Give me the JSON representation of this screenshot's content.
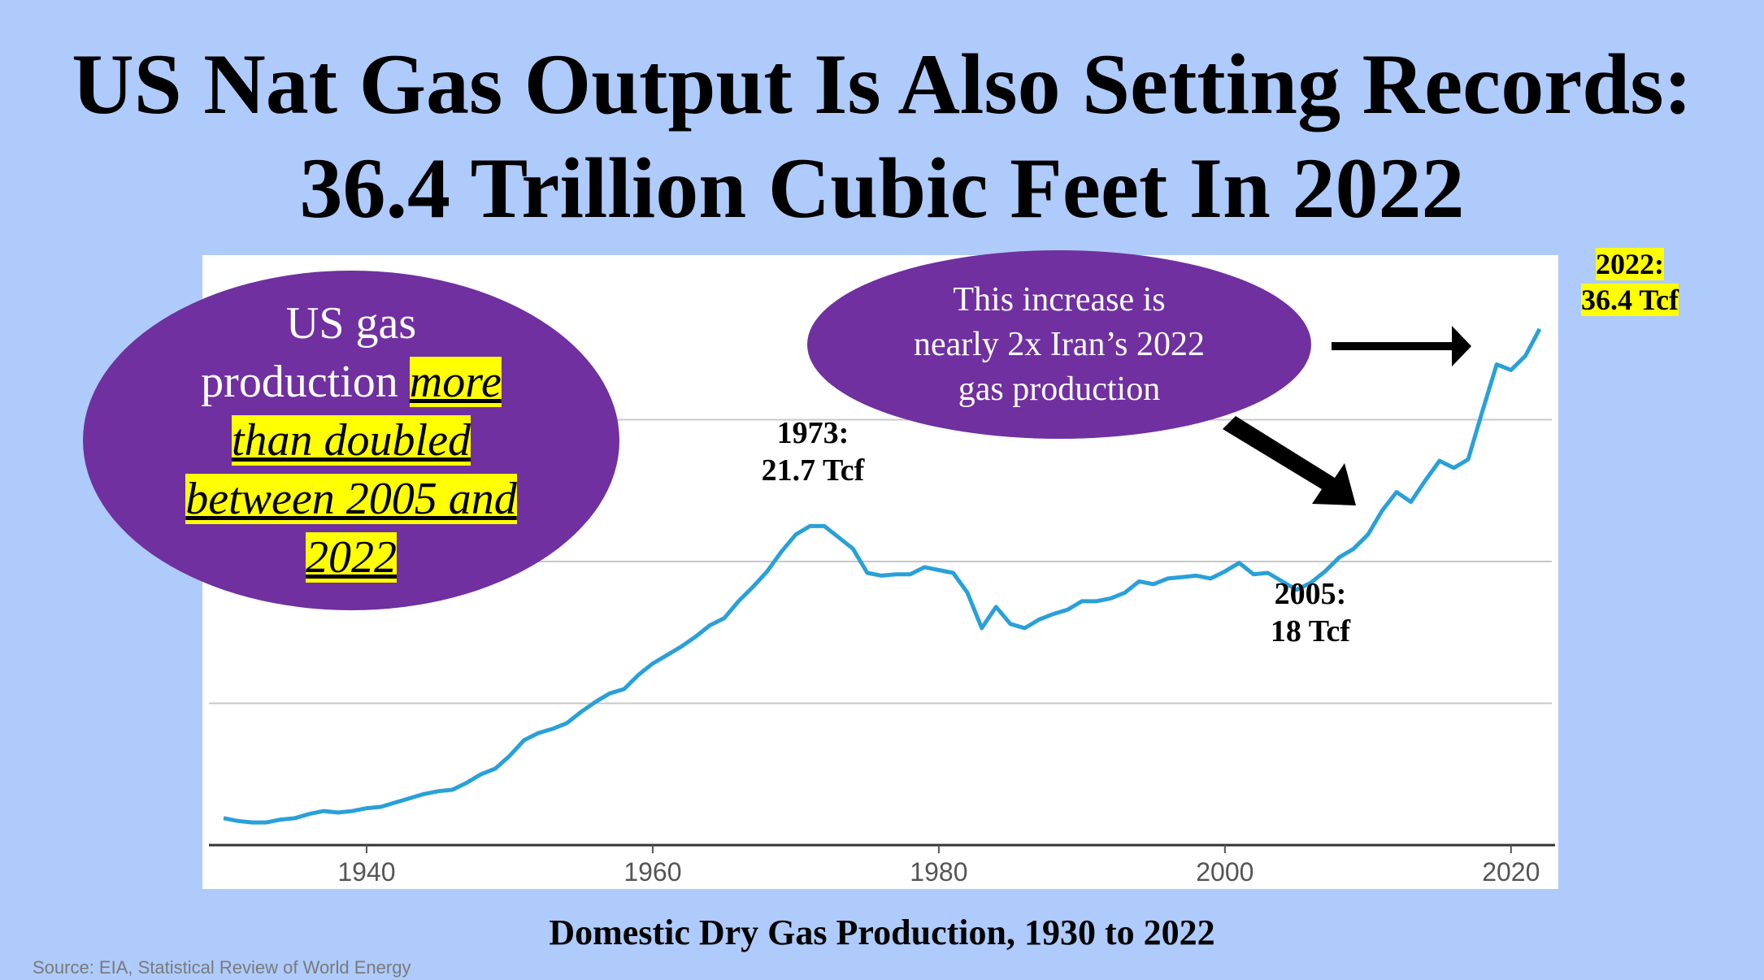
{
  "title": {
    "line1": "US Nat Gas Output Is Also Setting Records:",
    "line2": "36.4 Trillion Cubic Feet In 2022"
  },
  "bubble_left": {
    "text_plain_1": "US gas",
    "text_plain_2": "production ",
    "hl_1": "more",
    "hl_2": "than doubled",
    "hl_3": "between 2005 and",
    "hl_4": "2022"
  },
  "bubble_right": {
    "line1": "This increase is",
    "line2": "nearly 2x Iran’s 2022",
    "line3": "gas production"
  },
  "annotations": {
    "a1973_year": "1973:",
    "a1973_value": "21.7 Tcf",
    "a2005_year": "2005:",
    "a2005_value": "18 Tcf",
    "a2022_year": "2022:",
    "a2022_value": "36.4 Tcf"
  },
  "caption": "Domestic Dry Gas Production, 1930 to 2022",
  "source": "Source: EIA, Statistical Review of World Energy",
  "colors": {
    "background": "#aecbfb",
    "line": "#2aa0d8",
    "bubble": "#7030a0",
    "highlight": "#ffff00"
  },
  "chart_data": {
    "type": "line",
    "x_ticks": [
      1940,
      1960,
      1980,
      2000,
      2020
    ],
    "xlim": [
      1930,
      2022
    ],
    "ylim": [
      0,
      40
    ],
    "grid": true,
    "series": [
      {
        "x": [
          1930,
          1931,
          1932,
          1933,
          1934,
          1935,
          1936,
          1937,
          1938,
          1939,
          1940,
          1941,
          1942,
          1943,
          1944,
          1945,
          1946,
          1947,
          1948,
          1949,
          1950,
          1951,
          1952,
          1953,
          1954,
          1955,
          1956,
          1957,
          1958,
          1959,
          1960,
          1961,
          1962,
          1963,
          1964,
          1965,
          1966,
          1967,
          1968,
          1969,
          1970,
          1971,
          1972,
          1973,
          1974,
          1975,
          1976,
          1977,
          1978,
          1979,
          1980,
          1981,
          1982,
          1983,
          1984,
          1985,
          1986,
          1987,
          1988,
          1989,
          1990,
          1991,
          1992,
          1993,
          1994,
          1995,
          1996,
          1997,
          1998,
          1999,
          2000,
          2001,
          2002,
          2003,
          2004,
          2005,
          2006,
          2007,
          2008,
          2009,
          2010,
          2011,
          2012,
          2013,
          2014,
          2015,
          2016,
          2017,
          2018,
          2019,
          2020,
          2021,
          2022
        ],
        "values": [
          1.9,
          1.7,
          1.6,
          1.6,
          1.8,
          1.9,
          2.2,
          2.4,
          2.3,
          2.4,
          2.6,
          2.7,
          3.0,
          3.3,
          3.6,
          3.8,
          3.9,
          4.4,
          5.0,
          5.4,
          6.3,
          7.4,
          7.9,
          8.2,
          8.6,
          9.4,
          10.1,
          10.7,
          11.0,
          12.0,
          12.8,
          13.4,
          14.0,
          14.7,
          15.5,
          16.0,
          17.2,
          18.2,
          19.3,
          20.7,
          21.9,
          22.5,
          22.5,
          21.7,
          20.9,
          19.2,
          19.0,
          19.1,
          19.1,
          19.6,
          19.4,
          19.2,
          17.8,
          15.3,
          16.8,
          15.6,
          15.3,
          15.9,
          16.3,
          16.6,
          17.2,
          17.2,
          17.4,
          17.8,
          18.6,
          18.4,
          18.8,
          18.9,
          19.0,
          18.8,
          19.3,
          19.9,
          19.1,
          19.2,
          18.6,
          18.0,
          18.5,
          19.3,
          20.3,
          20.9,
          21.9,
          23.6,
          24.9,
          24.2,
          25.7,
          27.1,
          26.6,
          27.2,
          30.6,
          33.9,
          33.5,
          34.5,
          36.4
        ]
      }
    ]
  }
}
